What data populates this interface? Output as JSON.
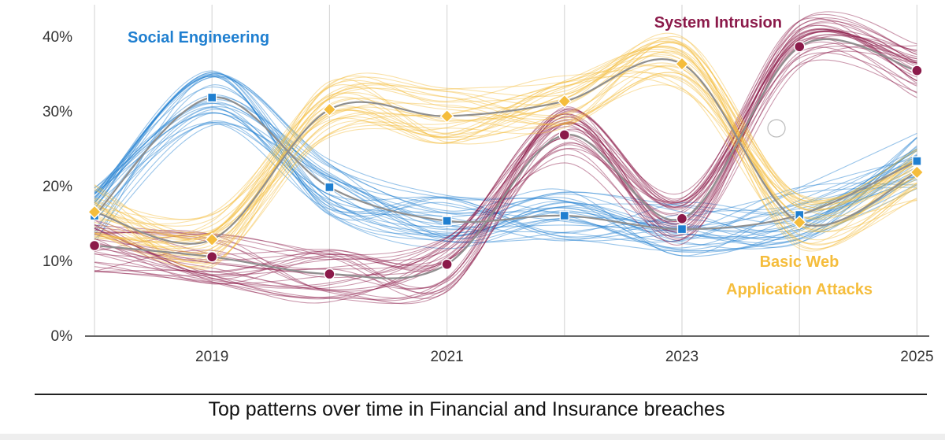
{
  "chart_data": {
    "type": "line",
    "title": "Top patterns over time in Financial and Insurance breaches",
    "xlabel": "",
    "ylabel": "",
    "x": [
      2018,
      2019,
      2020,
      2021,
      2022,
      2023,
      2024,
      2025
    ],
    "x_ticks": [
      "2019",
      "2021",
      "2023",
      "2025"
    ],
    "y_ticks": [
      "0%",
      "10%",
      "20%",
      "30%",
      "40%"
    ],
    "ylim": [
      0,
      40
    ],
    "grid": "vertical",
    "series": [
      {
        "name": "Social Engineering",
        "label_lines": [
          "Social Engineering"
        ],
        "color": "#1f7fd0",
        "marker": "square",
        "values": [
          16,
          31.8,
          19.8,
          15.3,
          16,
          14.2,
          16.1,
          23.3
        ]
      },
      {
        "name": "System Intrusion",
        "label_lines": [
          "System Intrusion"
        ],
        "color": "#8b1a4a",
        "marker": "circle",
        "values": [
          12,
          10.5,
          8.2,
          9.5,
          26.8,
          15.6,
          38.6,
          35.4
        ]
      },
      {
        "name": "Basic Web Application Attacks",
        "label_lines": [
          "Basic Web",
          "Application Attacks"
        ],
        "color": "#f5bd3c",
        "marker": "diamond",
        "values": [
          16.5,
          12.8,
          30.2,
          29.3,
          31.3,
          36.3,
          15.1,
          21.8
        ]
      }
    ]
  },
  "caption": "Top patterns over time in Financial and Insurance breaches"
}
